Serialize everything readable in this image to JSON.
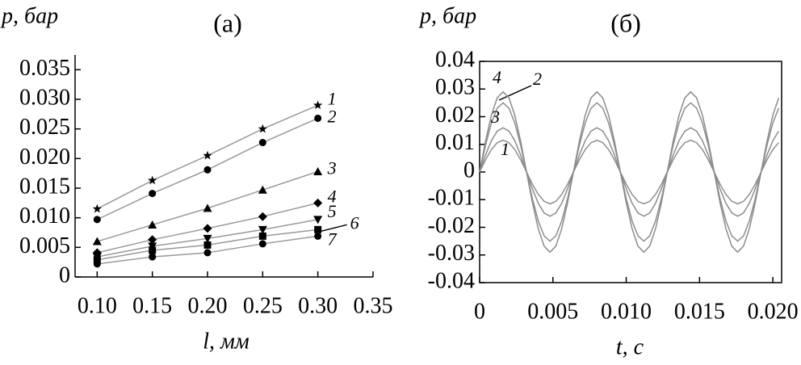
{
  "chart_data": [
    {
      "type": "line",
      "title": "(а)",
      "y_label": "p, бар",
      "x_label": "l, мм",
      "xlim": [
        0.08,
        0.35
      ],
      "ylim": [
        0,
        0.0375
      ],
      "xticks": [
        {
          "value": 0.1,
          "label": "0.10"
        },
        0.15,
        {
          "value": 0.2,
          "label": "0.20"
        },
        0.25,
        {
          "value": 0.3,
          "label": "0.30"
        },
        0.35
      ],
      "yticks": [
        0,
        0.005,
        {
          "value": 0.01,
          "label": "0.010"
        },
        0.015,
        {
          "value": 0.02,
          "label": "0.020"
        },
        0.025,
        {
          "value": 0.03,
          "label": "0.030"
        },
        0.035
      ],
      "x": [
        0.1,
        0.15,
        0.2,
        0.25,
        0.3
      ],
      "series": [
        {
          "name": "1",
          "color": "#999999",
          "marker": "star",
          "values": [
            0.0115,
            0.0163,
            0.0205,
            0.025,
            0.029
          ]
        },
        {
          "name": "2",
          "color": "#999999",
          "marker": "circle",
          "values": [
            0.0097,
            0.0141,
            0.0181,
            0.0227,
            0.0268
          ]
        },
        {
          "name": "3",
          "color": "#999999",
          "marker": "triangle",
          "values": [
            0.006,
            0.0088,
            0.0116,
            0.0147,
            0.0178
          ]
        },
        {
          "name": "4",
          "color": "#999999",
          "marker": "diamond",
          "values": [
            0.0041,
            0.0063,
            0.0082,
            0.0102,
            0.0125
          ]
        },
        {
          "name": "5",
          "color": "#999999",
          "marker": "triangle-down",
          "values": [
            0.0034,
            0.0052,
            0.0065,
            0.008,
            0.0097
          ]
        },
        {
          "name": "6",
          "color": "#999999",
          "marker": "square",
          "values": [
            0.0029,
            0.0045,
            0.0054,
            0.0069,
            0.008
          ]
        },
        {
          "name": "7",
          "color": "#999999",
          "marker": "circle",
          "values": [
            0.0022,
            0.0034,
            0.0041,
            0.0056,
            0.0069
          ]
        }
      ]
    },
    {
      "type": "line",
      "title": "(б)",
      "y_label": "p, бар",
      "x_label": "t, с",
      "xlim": [
        0,
        0.0206
      ],
      "ylim": [
        -0.04,
        0.04
      ],
      "xticks": [
        0,
        0.005,
        {
          "value": 0.01,
          "label": "0.010"
        },
        0.015,
        {
          "value": 0.02,
          "label": "0.020"
        }
      ],
      "yticks": [
        -0.04,
        -0.03,
        -0.02,
        -0.01,
        0,
        0.01,
        0.02,
        0.03,
        0.04
      ],
      "x": [
        0,
        0.0004,
        0.0008,
        0.0012,
        0.0016,
        0.002,
        0.0024,
        0.0028,
        0.0032,
        0.0036,
        0.004,
        0.0044,
        0.0048,
        0.0052,
        0.0056,
        0.006,
        0.0064,
        0.0068,
        0.0072,
        0.0076,
        0.008,
        0.0084,
        0.0088,
        0.0092,
        0.0096,
        0.01,
        0.0104,
        0.0108,
        0.0112,
        0.0116,
        0.012,
        0.0124,
        0.0128,
        0.0132,
        0.0136,
        0.014,
        0.0144,
        0.0148,
        0.0152,
        0.0156,
        0.016,
        0.0164,
        0.0168,
        0.0172,
        0.0176,
        0.018,
        0.0184,
        0.0188,
        0.0192,
        0.0196,
        0.02,
        0.0204
      ],
      "series": [
        {
          "name": "1",
          "color": "#8c8c8c",
          "values": [
            0,
            0.0044,
            0.0081,
            0.0106,
            0.0115,
            0.0106,
            0.0081,
            0.0044,
            0,
            -0.0044,
            -0.0081,
            -0.0106,
            -0.0115,
            -0.0106,
            -0.0081,
            -0.0044,
            0,
            0.0044,
            0.0081,
            0.0106,
            0.0115,
            0.0106,
            0.0081,
            0.0044,
            0,
            -0.0044,
            -0.0081,
            -0.0106,
            -0.0115,
            -0.0106,
            -0.0081,
            -0.0044,
            0,
            0.0044,
            0.0081,
            0.0106,
            0.0115,
            0.0106,
            0.0081,
            0.0044,
            0,
            -0.0044,
            -0.0081,
            -0.0106,
            -0.0115,
            -0.0106,
            -0.0081,
            -0.0044,
            0,
            0.0044,
            0.0081,
            0.0106
          ]
        },
        {
          "name": "2",
          "color": "#8c8c8c",
          "values": [
            0,
            0.0061,
            0.0113,
            0.0148,
            0.016,
            0.0148,
            0.0113,
            0.0061,
            0,
            -0.0061,
            -0.0113,
            -0.0148,
            -0.016,
            -0.0148,
            -0.0113,
            -0.0061,
            0,
            0.0061,
            0.0113,
            0.0148,
            0.016,
            0.0148,
            0.0113,
            0.0061,
            0,
            -0.0061,
            -0.0113,
            -0.0148,
            -0.016,
            -0.0148,
            -0.0113,
            -0.0061,
            0,
            0.0061,
            0.0113,
            0.0148,
            0.016,
            0.0148,
            0.0113,
            0.0061,
            0,
            -0.0061,
            -0.0113,
            -0.0148,
            -0.016,
            -0.0148,
            -0.0113,
            -0.0061,
            0,
            0.0061,
            0.0113,
            0.0148
          ]
        },
        {
          "name": "3",
          "color": "#8c8c8c",
          "values": [
            0,
            0.0096,
            0.0177,
            0.0231,
            0.025,
            0.0231,
            0.0177,
            0.0096,
            0,
            -0.0096,
            -0.0177,
            -0.0231,
            -0.025,
            -0.0231,
            -0.0177,
            -0.0096,
            0,
            0.0096,
            0.0177,
            0.0231,
            0.025,
            0.0231,
            0.0177,
            0.0096,
            0,
            -0.0096,
            -0.0177,
            -0.0231,
            -0.025,
            -0.0231,
            -0.0177,
            -0.0096,
            0,
            0.0096,
            0.0177,
            0.0231,
            0.025,
            0.0231,
            0.0177,
            0.0096,
            0,
            -0.0096,
            -0.0177,
            -0.0231,
            -0.025,
            -0.0231,
            -0.0177,
            -0.0096,
            0,
            0.0096,
            0.0177,
            0.0231
          ]
        },
        {
          "name": "4",
          "color": "#8c8c8c",
          "values": [
            0,
            0.0111,
            0.0205,
            0.0268,
            0.029,
            0.0268,
            0.0205,
            0.0111,
            0,
            -0.0111,
            -0.0205,
            -0.0268,
            -0.029,
            -0.0268,
            -0.0205,
            -0.0111,
            0,
            0.0111,
            0.0205,
            0.0268,
            0.029,
            0.0268,
            0.0205,
            0.0111,
            0,
            -0.0111,
            -0.0205,
            -0.0268,
            -0.029,
            -0.0268,
            -0.0205,
            -0.0111,
            0,
            0.0111,
            0.0205,
            0.0268,
            0.029,
            0.0268,
            0.0205,
            0.0111,
            0,
            -0.0111,
            -0.0205,
            -0.0268,
            -0.029,
            -0.0268,
            -0.0205,
            -0.0111,
            0,
            0.0111,
            0.0205,
            0.0268
          ]
        }
      ]
    }
  ]
}
